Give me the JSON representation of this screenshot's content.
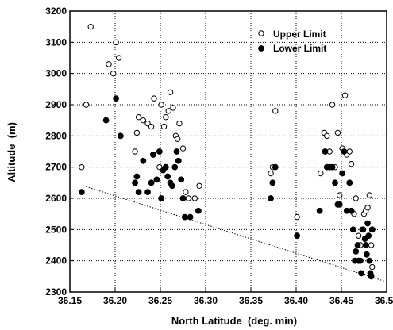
{
  "chart_data": {
    "type": "scatter",
    "title": "",
    "xlabel": "North Latitude  (deg. min)",
    "ylabel": "Altitude  (m)",
    "xlim": [
      36.15,
      36.5
    ],
    "ylim": [
      2300,
      3200
    ],
    "x_ticks": [
      "36.15",
      "36.20",
      "36.25",
      "36.30",
      "36.35",
      "36.40",
      "36.45",
      "36.50"
    ],
    "y_ticks": [
      "2300",
      "2400",
      "2500",
      "2600",
      "2700",
      "2800",
      "2900",
      "3000",
      "3100",
      "3200"
    ],
    "grid": true,
    "legend_position": "top-right",
    "series": [
      {
        "name": "Upper Limit",
        "marker": "open-circle",
        "color": "#000000",
        "points": [
          [
            36.163,
            2700
          ],
          [
            36.168,
            2900
          ],
          [
            36.173,
            3150
          ],
          [
            36.193,
            3030
          ],
          [
            36.198,
            3000
          ],
          [
            36.201,
            3100
          ],
          [
            36.204,
            3050
          ],
          [
            36.222,
            2750
          ],
          [
            36.224,
            2810
          ],
          [
            36.226,
            2860
          ],
          [
            36.231,
            2850
          ],
          [
            36.236,
            2840
          ],
          [
            36.24,
            2830
          ],
          [
            36.243,
            2920
          ],
          [
            36.249,
            2700
          ],
          [
            36.251,
            2900
          ],
          [
            36.254,
            2830
          ],
          [
            36.256,
            2860
          ],
          [
            36.259,
            2880
          ],
          [
            36.261,
            2940
          ],
          [
            36.264,
            2890
          ],
          [
            36.267,
            2800
          ],
          [
            36.269,
            2790
          ],
          [
            36.271,
            2840
          ],
          [
            36.275,
            2760
          ],
          [
            36.278,
            2620
          ],
          [
            36.281,
            2600
          ],
          [
            36.288,
            2600
          ],
          [
            36.293,
            2640
          ],
          [
            36.372,
            2680
          ],
          [
            36.374,
            2700
          ],
          [
            36.377,
            2880
          ],
          [
            36.401,
            2540
          ],
          [
            36.427,
            2680
          ],
          [
            36.431,
            2810
          ],
          [
            36.434,
            2800
          ],
          [
            36.437,
            2750
          ],
          [
            36.44,
            2900
          ],
          [
            36.443,
            2700
          ],
          [
            36.446,
            2810
          ],
          [
            36.448,
            2610
          ],
          [
            36.451,
            2760
          ],
          [
            36.454,
            2930
          ],
          [
            36.456,
            2740
          ],
          [
            36.459,
            2750
          ],
          [
            36.461,
            2710
          ],
          [
            36.464,
            2550
          ],
          [
            36.466,
            2600
          ],
          [
            36.469,
            2480
          ],
          [
            36.471,
            2450
          ],
          [
            36.473,
            2500
          ],
          [
            36.475,
            2550
          ],
          [
            36.477,
            2560
          ],
          [
            36.479,
            2570
          ],
          [
            36.481,
            2610
          ],
          [
            36.483,
            2450
          ],
          [
            36.484,
            2380
          ]
        ]
      },
      {
        "name": "Lower Limit",
        "marker": "filled-circle",
        "color": "#000000",
        "points": [
          [
            36.163,
            2620
          ],
          [
            36.19,
            2850
          ],
          [
            36.201,
            2920
          ],
          [
            36.206,
            2800
          ],
          [
            36.222,
            2650
          ],
          [
            36.224,
            2670
          ],
          [
            36.226,
            2620
          ],
          [
            36.231,
            2720
          ],
          [
            36.236,
            2620
          ],
          [
            36.24,
            2650
          ],
          [
            36.242,
            2740
          ],
          [
            36.246,
            2660
          ],
          [
            36.249,
            2750
          ],
          [
            36.251,
            2600
          ],
          [
            36.253,
            2690
          ],
          [
            36.256,
            2700
          ],
          [
            36.258,
            2670
          ],
          [
            36.261,
            2650
          ],
          [
            36.263,
            2640
          ],
          [
            36.266,
            2700
          ],
          [
            36.268,
            2750
          ],
          [
            36.27,
            2720
          ],
          [
            36.273,
            2660
          ],
          [
            36.275,
            2600
          ],
          [
            36.277,
            2540
          ],
          [
            36.283,
            2540
          ],
          [
            36.292,
            2560
          ],
          [
            36.372,
            2600
          ],
          [
            36.374,
            2650
          ],
          [
            36.377,
            2700
          ],
          [
            36.401,
            2480
          ],
          [
            36.426,
            2560
          ],
          [
            36.432,
            2750
          ],
          [
            36.434,
            2700
          ],
          [
            36.437,
            2700
          ],
          [
            36.44,
            2700
          ],
          [
            36.443,
            2650
          ],
          [
            36.446,
            2580
          ],
          [
            36.448,
            2580
          ],
          [
            36.451,
            2680
          ],
          [
            36.453,
            2750
          ],
          [
            36.456,
            2560
          ],
          [
            36.459,
            2650
          ],
          [
            36.461,
            2560
          ],
          [
            36.463,
            2500
          ],
          [
            36.465,
            2400
          ],
          [
            36.466,
            2430
          ],
          [
            36.468,
            2450
          ],
          [
            36.469,
            2400
          ],
          [
            36.471,
            2400
          ],
          [
            36.472,
            2360
          ],
          [
            36.474,
            2500
          ],
          [
            36.476,
            2470
          ],
          [
            36.477,
            2450
          ],
          [
            36.478,
            2420
          ],
          [
            36.479,
            2520
          ],
          [
            36.48,
            2480
          ],
          [
            36.481,
            2400
          ],
          [
            36.482,
            2360
          ],
          [
            36.483,
            2350
          ],
          [
            36.484,
            2500
          ]
        ]
      }
    ],
    "reference_line": {
      "style": "dotted",
      "points": [
        [
          36.165,
          2640
        ],
        [
          36.497,
          2335
        ]
      ]
    }
  }
}
